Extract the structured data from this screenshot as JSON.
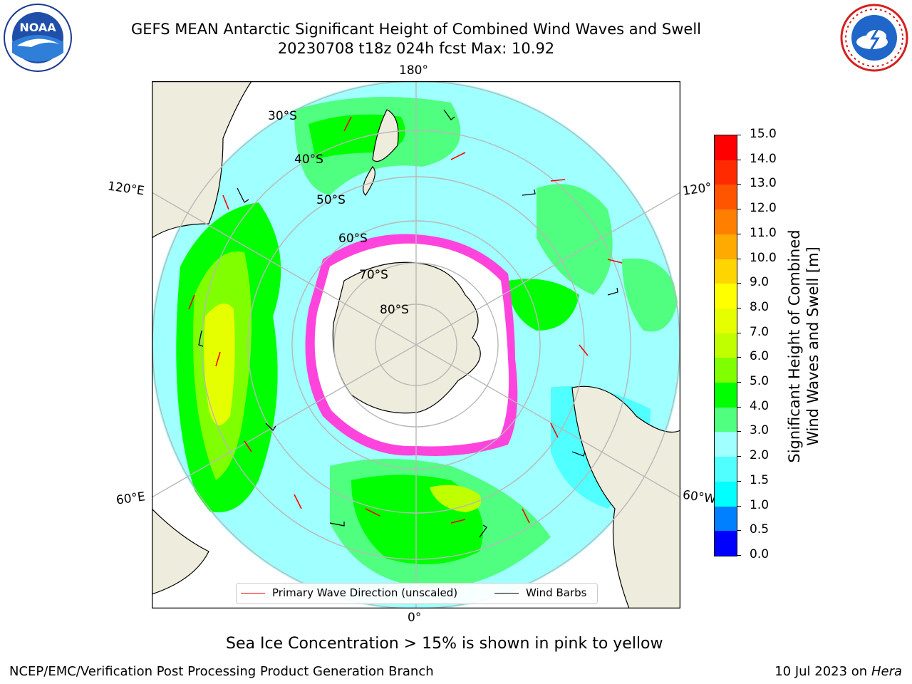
{
  "header": {
    "title_line1": "GEFS MEAN Antarctic Significant Height of Combined Wind Waves and Swell",
    "title_line2": "20230708 t18z 024h fcst   Max: 10.92"
  },
  "logos": {
    "left": "NOAA",
    "right": "NATIONAL WEATHER SERVICE"
  },
  "map": {
    "projection": "south-polar-stereographic",
    "longitude_labels": {
      "top": "180°",
      "bottom": "0°",
      "upper_left": "120°E",
      "lower_left": "60°E",
      "upper_right": "120°",
      "lower_right": "60°W"
    },
    "latitude_labels": [
      "30°S",
      "40°S",
      "50°S",
      "60°S",
      "70°S",
      "80°S"
    ],
    "land_color": "#eeecdc",
    "ice_color": "#ff44dd",
    "legend": {
      "wave": "Primary Wave Direction (unscaled)",
      "barbs": "Wind Barbs"
    }
  },
  "colorbar": {
    "label_line1": "Significant Height of Combined",
    "label_line2": "Wind Waves and Swell [m]",
    "ticks": [
      "15.0",
      "14.0",
      "13.0",
      "12.0",
      "11.0",
      "10.0",
      "9.0",
      "8.0",
      "7.0",
      "6.0",
      "5.0",
      "4.0",
      "3.0",
      "2.0",
      "1.5",
      "1.0",
      "0.5",
      "0.0"
    ],
    "colors": [
      "#ff0000",
      "#ff2a00",
      "#ff5500",
      "#ff8000",
      "#ffaa00",
      "#ffd500",
      "#ffff00",
      "#e6ff00",
      "#bfff00",
      "#80ff00",
      "#00ff00",
      "#50ff80",
      "#a0ffff",
      "#50ffff",
      "#00ffff",
      "#0080ff",
      "#0000ff"
    ]
  },
  "notes": {
    "ice": "Sea Ice Concentration > 15% is shown in pink to yellow"
  },
  "footer": {
    "left": "NCEP/EMC/Verification Post Processing Product Generation Branch",
    "right_date": "10 Jul 2023 on ",
    "right_machine": "Hera"
  }
}
